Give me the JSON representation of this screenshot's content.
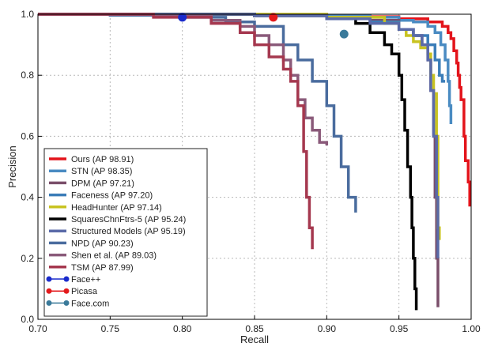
{
  "chart_data": {
    "type": "line",
    "title": "",
    "xlabel": "Recall",
    "ylabel": "Precision",
    "xlim": [
      0.7,
      1.0
    ],
    "ylim": [
      0.0,
      1.0
    ],
    "xticks": [
      "0.70",
      "0.75",
      "0.80",
      "0.85",
      "0.90",
      "0.95",
      "1.00"
    ],
    "yticks": [
      "0.0",
      "0.2",
      "0.4",
      "0.6",
      "0.8",
      "1.0"
    ],
    "grid": true,
    "legend_position": "bottom-left",
    "series": [
      {
        "name": "Ours (AP 98.91)",
        "color": "#e3141b",
        "width": 3.5,
        "x": [
          0.7,
          0.85,
          0.9,
          0.93,
          0.95,
          0.97,
          0.98,
          0.984,
          0.986,
          0.988,
          0.99,
          0.991,
          0.992,
          0.993,
          0.995,
          0.996,
          0.998,
          0.999
        ],
        "y": [
          1.0,
          0.998,
          0.996,
          0.992,
          0.985,
          0.975,
          0.96,
          0.94,
          0.92,
          0.88,
          0.84,
          0.8,
          0.76,
          0.72,
          0.6,
          0.52,
          0.45,
          0.37
        ]
      },
      {
        "name": "STN (AP 98.35)",
        "color": "#4a8bc2",
        "width": 3.5,
        "x": [
          0.7,
          0.85,
          0.9,
          0.93,
          0.95,
          0.96,
          0.97,
          0.975,
          0.979,
          0.982,
          0.984,
          0.985,
          0.986
        ],
        "y": [
          1.0,
          0.998,
          0.995,
          0.99,
          0.98,
          0.975,
          0.96,
          0.94,
          0.9,
          0.85,
          0.78,
          0.7,
          0.64
        ]
      },
      {
        "name": "DPM (AP 97.21)",
        "color": "#7a4e6a",
        "width": 3.5,
        "x": [
          0.7,
          0.85,
          0.9,
          0.93,
          0.95,
          0.96,
          0.966,
          0.97,
          0.972,
          0.974,
          0.975,
          0.976,
          0.977
        ],
        "y": [
          1.0,
          0.995,
          0.99,
          0.98,
          0.95,
          0.93,
          0.9,
          0.85,
          0.75,
          0.6,
          0.4,
          0.2,
          0.04
        ]
      },
      {
        "name": "Faceness (AP 97.20)",
        "color": "#3b7db8",
        "width": 3.5,
        "x": [
          0.7,
          0.85,
          0.9,
          0.93,
          0.95,
          0.96,
          0.97,
          0.975,
          0.978,
          0.98,
          0.982
        ],
        "y": [
          1.0,
          0.995,
          0.99,
          0.975,
          0.95,
          0.93,
          0.9,
          0.85,
          0.8,
          0.78,
          0.78
        ]
      },
      {
        "name": "HeadHunter (AP 97.14)",
        "color": "#c8c321",
        "width": 3.5,
        "x": [
          0.7,
          0.9,
          0.94,
          0.95,
          0.955,
          0.96,
          0.965,
          0.97,
          0.972,
          0.974,
          0.976,
          0.977,
          0.977,
          0.978
        ],
        "y": [
          1.0,
          0.99,
          0.97,
          0.95,
          0.93,
          0.91,
          0.89,
          0.87,
          0.8,
          0.74,
          0.6,
          0.42,
          0.3,
          0.26
        ]
      },
      {
        "name": "SquaresChnFtrs-5 (AP 95.24)",
        "color": "#000000",
        "width": 3.5,
        "x": [
          0.7,
          0.85,
          0.9,
          0.92,
          0.93,
          0.94,
          0.945,
          0.95,
          0.952,
          0.954,
          0.956,
          0.958,
          0.959,
          0.96,
          0.961,
          0.962
        ],
        "y": [
          1.0,
          0.995,
          0.985,
          0.97,
          0.94,
          0.9,
          0.87,
          0.8,
          0.72,
          0.62,
          0.5,
          0.4,
          0.3,
          0.2,
          0.1,
          0.03
        ]
      },
      {
        "name": "Structured Models (AP 95.19)",
        "color": "#5a6aa8",
        "width": 3.5,
        "x": [
          0.7,
          0.85,
          0.9,
          0.93,
          0.95,
          0.96,
          0.966,
          0.97,
          0.972,
          0.974,
          0.976,
          0.977
        ],
        "y": [
          1.0,
          0.995,
          0.985,
          0.97,
          0.95,
          0.93,
          0.9,
          0.85,
          0.75,
          0.6,
          0.4,
          0.2
        ]
      },
      {
        "name": "NPD (AP 90.23)",
        "color": "#4a6c9e",
        "width": 3.5,
        "x": [
          0.7,
          0.75,
          0.8,
          0.83,
          0.85,
          0.87,
          0.88,
          0.89,
          0.9,
          0.905,
          0.91,
          0.915,
          0.92
        ],
        "y": [
          1.0,
          0.997,
          0.99,
          0.975,
          0.96,
          0.9,
          0.85,
          0.78,
          0.7,
          0.6,
          0.5,
          0.4,
          0.35
        ]
      },
      {
        "name": "Shen et al. (AP 89.03)",
        "color": "#8a5a7a",
        "width": 3.5,
        "x": [
          0.7,
          0.78,
          0.82,
          0.84,
          0.85,
          0.86,
          0.87,
          0.875,
          0.88,
          0.885,
          0.89,
          0.895,
          0.9
        ],
        "y": [
          1.0,
          0.995,
          0.98,
          0.96,
          0.93,
          0.9,
          0.85,
          0.8,
          0.72,
          0.66,
          0.62,
          0.58,
          0.57
        ]
      },
      {
        "name": "TSM (AP 87.99)",
        "color": "#a5384f",
        "width": 3.5,
        "x": [
          0.7,
          0.78,
          0.82,
          0.84,
          0.85,
          0.86,
          0.87,
          0.875,
          0.88,
          0.884,
          0.886,
          0.888,
          0.89
        ],
        "y": [
          1.0,
          0.99,
          0.97,
          0.94,
          0.9,
          0.86,
          0.82,
          0.78,
          0.7,
          0.55,
          0.4,
          0.3,
          0.23
        ]
      }
    ],
    "points": [
      {
        "name": "Face++",
        "color": "#1a2bcc",
        "x": 0.8,
        "y": 0.99
      },
      {
        "name": "Picasa",
        "color": "#e31a1c",
        "x": 0.863,
        "y": 0.99
      },
      {
        "name": "Face.com",
        "color": "#3a7a9a",
        "x": 0.912,
        "y": 0.935
      }
    ]
  }
}
